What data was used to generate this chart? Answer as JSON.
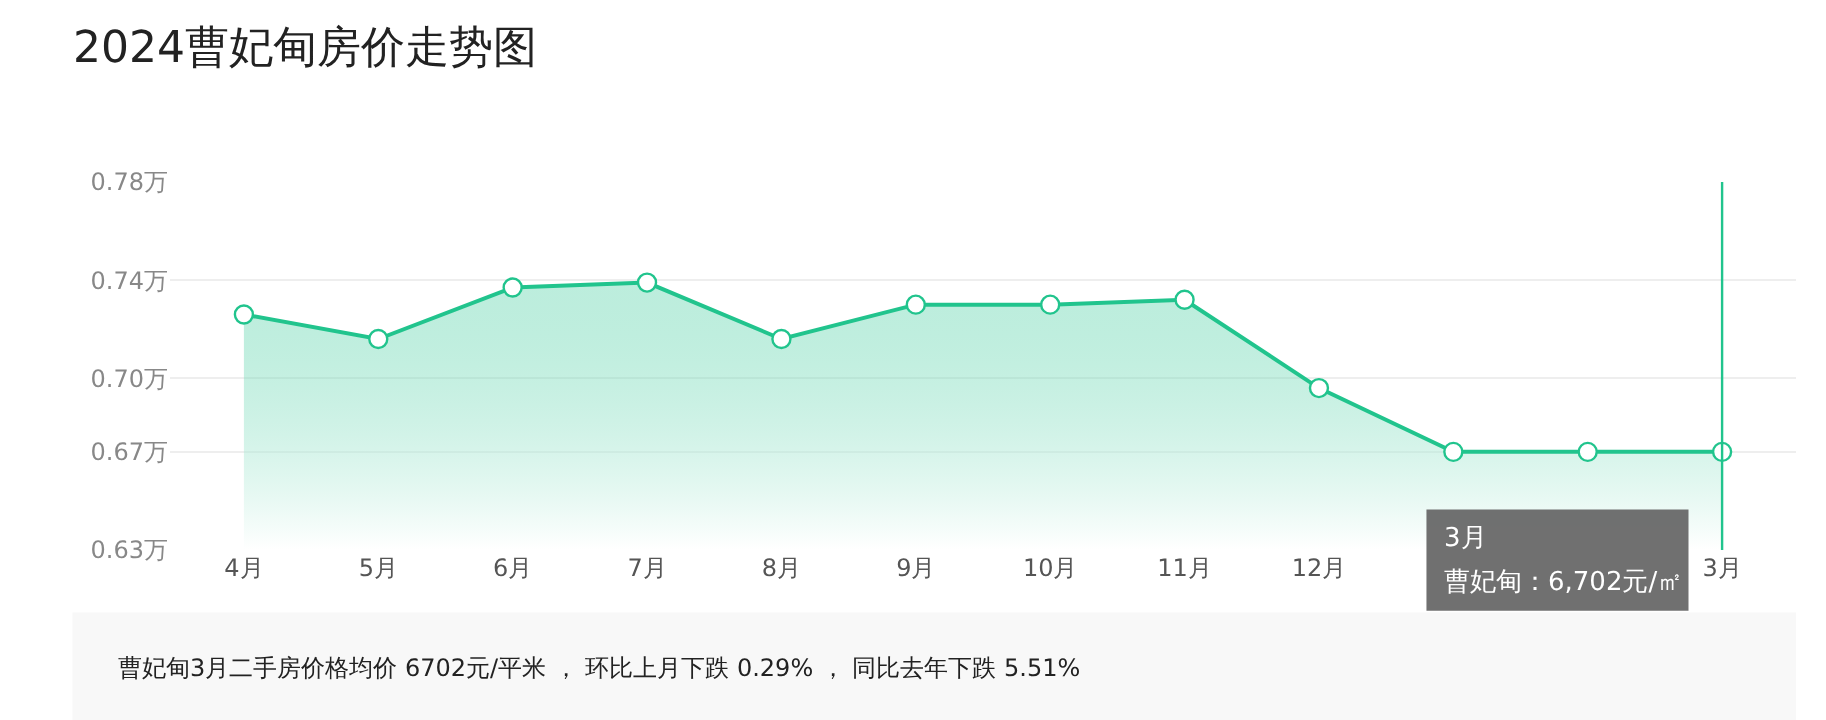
{
  "chart_data": {
    "type": "area",
    "title": "2024曹妃甸房价走势图",
    "categories": [
      "4月",
      "5月",
      "6月",
      "7月",
      "8月",
      "9月",
      "10月",
      "11月",
      "12月",
      null,
      null,
      "3月"
    ],
    "series": [
      {
        "color": "#21c48d",
        "values": [
          0.726,
          0.716,
          0.737,
          0.739,
          0.716,
          0.73,
          0.73,
          0.732,
          0.696,
          0.67,
          0.67,
          0.67
        ]
      }
    ],
    "ylim": [
      0.63,
      0.78
    ],
    "yticks": [
      {
        "value": 0.63,
        "label": "0.63万"
      },
      {
        "value": 0.67,
        "label": "0.67万"
      },
      {
        "value": 0.7,
        "label": "0.70万"
      },
      {
        "value": 0.74,
        "label": "0.74万"
      },
      {
        "value": 0.78,
        "label": "0.78万"
      }
    ],
    "grid": "y",
    "marker": "circle",
    "line_style": "solid",
    "ref_lines": [
      {
        "axis": "x",
        "value": "3月",
        "color": "#21c48d"
      }
    ],
    "annotations": [
      "3月",
      "曹妃甸：6,702元/㎡",
      "曹妃甸3月二手房价格均价 6702元/平米 ， 环比上月下跌 0.29% ， 同比去年下跌 5.51%"
    ]
  }
}
